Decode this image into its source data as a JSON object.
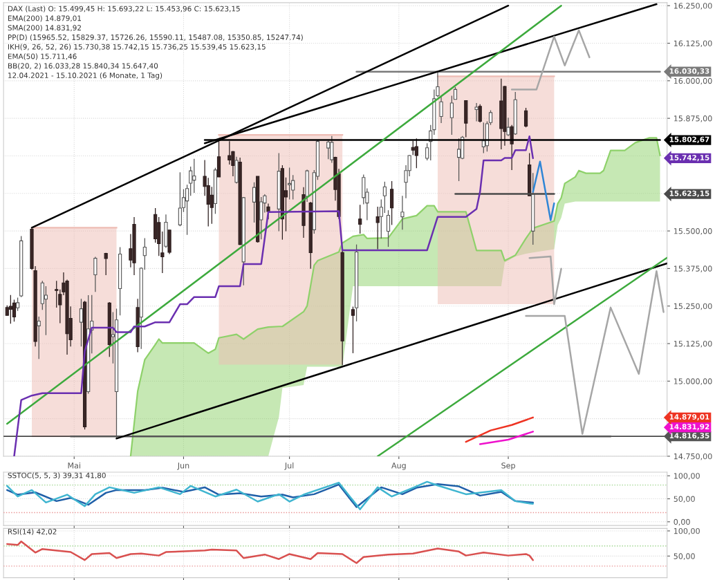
{
  "chart_data": [
    {
      "type": "candlestick",
      "xlim": [
        "2021-04-11",
        "2021-10-16"
      ],
      "ylim": [
        14750,
        16260
      ],
      "xticks": [
        {
          "value": "2021-05-01",
          "label": "Mai"
        },
        {
          "value": "2021-06-01",
          "label": "Jun"
        },
        {
          "value": "2021-07-01",
          "label": "Jul"
        },
        {
          "value": "2021-08-01",
          "label": "Aug"
        },
        {
          "value": "2021-09-01",
          "label": "Sep"
        }
      ],
      "yticks": [
        {
          "value": 14750,
          "label": "14.750,00"
        },
        {
          "value": 14875,
          "label": null
        },
        {
          "value": 15000,
          "label": "15.000,00"
        },
        {
          "value": 15125,
          "label": "15.125,00"
        },
        {
          "value": 15250,
          "label": "15.250,00"
        },
        {
          "value": 15375,
          "label": "15.375,00"
        },
        {
          "value": 15500,
          "label": "15.500,00"
        },
        {
          "value": 15625,
          "label": null
        },
        {
          "value": 15750,
          "label": null
        },
        {
          "value": 15875,
          "label": "15.875,00"
        },
        {
          "value": 16000,
          "label": "16.000,00"
        },
        {
          "value": 16125,
          "label": "16.125,00"
        },
        {
          "value": 16250,
          "label": "16.250,00"
        }
      ],
      "grid": true,
      "x": [
        "2021-04-12",
        "2021-04-13",
        "2021-04-14",
        "2021-04-15",
        "2021-04-16",
        "2021-04-19",
        "2021-04-20",
        "2021-04-21",
        "2021-04-22",
        "2021-04-23",
        "2021-04-26",
        "2021-04-27",
        "2021-04-28",
        "2021-04-29",
        "2021-04-30",
        "2021-05-03",
        "2021-05-04",
        "2021-05-05",
        "2021-05-06",
        "2021-05-07",
        "2021-05-10",
        "2021-05-11",
        "2021-05-12",
        "2021-05-13",
        "2021-05-14",
        "2021-05-17",
        "2021-05-18",
        "2021-05-19",
        "2021-05-20",
        "2021-05-21",
        "2021-05-24",
        "2021-05-25",
        "2021-05-26",
        "2021-05-27",
        "2021-05-28",
        "2021-05-31",
        "2021-06-01",
        "2021-06-02",
        "2021-06-03",
        "2021-06-04",
        "2021-06-07",
        "2021-06-08",
        "2021-06-09",
        "2021-06-10",
        "2021-06-11",
        "2021-06-14",
        "2021-06-15",
        "2021-06-16",
        "2021-06-17",
        "2021-06-18",
        "2021-06-21",
        "2021-06-22",
        "2021-06-23",
        "2021-06-24",
        "2021-06-25",
        "2021-06-28",
        "2021-06-29",
        "2021-06-30",
        "2021-07-01",
        "2021-07-02",
        "2021-07-05",
        "2021-07-06",
        "2021-07-07",
        "2021-07-08",
        "2021-07-09",
        "2021-07-12",
        "2021-07-13",
        "2021-07-14",
        "2021-07-15",
        "2021-07-16",
        "2021-07-19",
        "2021-07-20",
        "2021-07-21",
        "2021-07-22",
        "2021-07-23",
        "2021-07-26",
        "2021-07-27",
        "2021-07-28",
        "2021-07-29",
        "2021-07-30",
        "2021-08-02",
        "2021-08-03",
        "2021-08-04",
        "2021-08-05",
        "2021-08-06",
        "2021-08-09",
        "2021-08-10",
        "2021-08-11",
        "2021-08-12",
        "2021-08-13",
        "2021-08-16",
        "2021-08-17",
        "2021-08-18",
        "2021-08-19",
        "2021-08-20",
        "2021-08-23",
        "2021-08-24",
        "2021-08-25",
        "2021-08-26",
        "2021-08-27",
        "2021-08-30",
        "2021-08-31",
        "2021-09-01",
        "2021-09-02",
        "2021-09-03",
        "2021-09-06",
        "2021-09-07",
        "2021-09-08"
      ],
      "ohlc": [
        [
          15245,
          15252,
          15219,
          15219
        ],
        [
          15249,
          15287,
          15191,
          15239
        ],
        [
          15260,
          15271,
          15198,
          15214
        ],
        [
          15244,
          15278,
          15234,
          15261
        ],
        [
          15284,
          15483,
          15280,
          15467
        ],
        [
          15506,
          15509,
          15371,
          15375
        ],
        [
          15368,
          15383,
          15115,
          15132
        ],
        [
          15184,
          15215,
          15074,
          15200
        ],
        [
          15258,
          15334,
          15237,
          15327
        ],
        [
          15273,
          15316,
          15153,
          15286
        ],
        [
          15305,
          15334,
          15245,
          15302
        ],
        [
          15289,
          15305,
          15193,
          15254
        ],
        [
          15327,
          15362,
          15286,
          15297
        ],
        [
          15333,
          15338,
          15088,
          15158
        ],
        [
          15209,
          15249,
          15115,
          15138
        ],
        [
          15196,
          15274,
          15115,
          15241
        ],
        [
          15263,
          15267,
          14839,
          14848
        ],
        [
          14965,
          15286,
          14958,
          15174
        ],
        [
          15170,
          15287,
          15092,
          15200
        ],
        [
          15354,
          15414,
          15297,
          15409
        ],
        [
          15425,
          15427,
          15353,
          15408
        ],
        [
          15260,
          15263,
          15081,
          15122
        ],
        [
          15148,
          15230,
          15059,
          15155
        ],
        [
          14965,
          15241,
          14809,
          15204
        ],
        [
          15308,
          15446,
          15219,
          15423
        ],
        [
          15441,
          15490,
          15379,
          15403
        ],
        [
          15522,
          15546,
          15353,
          15394
        ],
        [
          15245,
          15274,
          15096,
          15115
        ],
        [
          15213,
          15379,
          15107,
          15376
        ],
        [
          15418,
          15476,
          15371,
          15446
        ],
        [
          15555,
          15576,
          15461,
          15474
        ],
        [
          15528,
          15546,
          15417,
          15458
        ],
        [
          15427,
          15498,
          15360,
          15414
        ],
        [
          15449,
          15555,
          15444,
          15529
        ],
        [
          15503,
          15503,
          15423,
          15429
        ],
        [
          15520,
          15695,
          15516,
          15576
        ],
        [
          15578,
          15639,
          15563,
          15611
        ],
        [
          15600,
          15654,
          15487,
          15641
        ],
        [
          15659,
          15714,
          15617,
          15700
        ],
        [
          15669,
          15740,
          15627,
          15683
        ],
        [
          15682,
          15736,
          15617,
          15648
        ],
        [
          15651,
          15677,
          15515,
          15589
        ],
        [
          15619,
          15647,
          15524,
          15578
        ],
        [
          15591,
          15710,
          15557,
          15703
        ],
        [
          15747,
          15799,
          15680,
          15680
        ],
        [
          15751,
          15799,
          15721,
          15736
        ],
        [
          15764,
          15766,
          15682,
          15718
        ],
        [
          15662,
          15747,
          15658,
          15735
        ],
        [
          15729,
          15744,
          15453,
          15455
        ],
        [
          15397,
          15613,
          15319,
          15611
        ],
        [
          15596,
          15662,
          15528,
          15645
        ],
        [
          15682,
          15682,
          15461,
          15464
        ],
        [
          15537,
          15613,
          15472,
          15597
        ],
        [
          15593,
          15622,
          15561,
          15617
        ],
        [
          15580,
          15591,
          15539,
          15565
        ],
        [
          15573,
          15759,
          15499,
          15699
        ],
        [
          15708,
          15719,
          15471,
          15540
        ],
        [
          15634,
          15678,
          15499,
          15613
        ],
        [
          15654,
          15711,
          15605,
          15658
        ],
        [
          15636,
          15686,
          15605,
          15668
        ],
        [
          15621,
          15646,
          15477,
          15518
        ],
        [
          15615,
          15704,
          15597,
          15700
        ],
        [
          15593,
          15597,
          15374,
          15428
        ],
        [
          15504,
          15703,
          15491,
          15694
        ],
        [
          15682,
          15804,
          15670,
          15798
        ],
        [
          15776,
          15800,
          15739,
          15796
        ],
        [
          15737,
          15816,
          15727,
          15795
        ],
        [
          15745,
          15747,
          15601,
          15638
        ],
        [
          15690,
          15707,
          15540,
          15548
        ],
        [
          15428,
          15435,
          15053,
          15134
        ],
        [
          15238,
          15248,
          15093,
          15219
        ],
        [
          15244,
          15455,
          15199,
          15430
        ],
        [
          15540,
          15587,
          15491,
          15522
        ],
        [
          15611,
          15688,
          15589,
          15678
        ],
        [
          15593,
          15642,
          15536,
          15629
        ],
        [
          15547,
          15581,
          15439,
          15528
        ],
        [
          15548,
          15605,
          15475,
          15579
        ],
        [
          15617,
          15664,
          15560,
          15647
        ],
        [
          15499,
          15569,
          15447,
          15552
        ],
        [
          15639,
          15666,
          15520,
          15577
        ],
        [
          15547,
          15617,
          15504,
          15563
        ],
        [
          15662,
          15719,
          15609,
          15701
        ],
        [
          15701,
          15753,
          15682,
          15751
        ],
        [
          15778,
          15800,
          15753,
          15769
        ],
        [
          15781,
          15808,
          15709,
          15751
        ],
        [
          15742,
          15792,
          15735,
          15777
        ],
        [
          15798,
          15853,
          15735,
          15833
        ],
        [
          15837,
          15971,
          15820,
          15940
        ],
        [
          15950,
          16030,
          15946,
          15980
        ],
        [
          15881,
          15950,
          15859,
          15930
        ],
        [
          15877,
          15950,
          15820,
          15926
        ],
        [
          15938,
          15979,
          15938,
          15971
        ],
        [
          15745,
          15808,
          15666,
          15772
        ],
        [
          15742,
          15816,
          15739,
          15812
        ],
        [
          15934,
          15934,
          15812,
          15859
        ],
        [
          15904,
          15926,
          15865,
          15912
        ],
        [
          15915,
          15922,
          15861,
          15865
        ],
        [
          15780,
          15861,
          15759,
          15800
        ],
        [
          15784,
          15865,
          15764,
          15857
        ],
        [
          15861,
          15902,
          15853,
          15894
        ],
        [
          15933,
          16007,
          15772,
          15841
        ],
        [
          15981,
          15983,
          15784,
          15831
        ],
        [
          15820,
          15877,
          15816,
          15845
        ],
        [
          15847,
          15853,
          15703,
          15790
        ],
        [
          15823,
          15963,
          15820,
          15937
        ],
        [
          15900,
          15910,
          15845,
          15849
        ],
        [
          15720,
          15759,
          15617,
          15617
        ],
        [
          15499.45,
          15693.22,
          15453.96,
          15623.15
        ]
      ],
      "series": [
        {
          "type": "line",
          "color": "#8ed16a",
          "x": [
            "2021-05-17",
            "2021-05-19",
            "2021-05-21",
            "2021-05-24",
            "2021-05-25",
            "2021-05-26",
            "2021-06-04",
            "2021-06-08",
            "2021-06-10",
            "2021-06-11",
            "2021-06-16",
            "2021-06-18",
            "2021-06-22",
            "2021-06-25",
            "2021-06-28",
            "2021-06-29",
            "2021-07-05",
            "2021-07-06",
            "2021-07-08",
            "2021-07-09",
            "2021-07-15",
            "2021-07-16",
            "2021-07-19",
            "2021-07-22",
            "2021-07-23",
            "2021-07-29",
            "2021-08-02",
            "2021-08-06",
            "2021-08-09",
            "2021-08-11",
            "2021-08-12",
            "2021-08-20",
            "2021-08-23",
            "2021-08-30",
            "2021-08-31",
            "2021-09-03",
            "2021-09-06",
            "2021-09-08",
            "2021-09-14",
            "2021-09-15",
            "2021-09-16",
            "2021-09-17",
            "2021-09-20",
            "2021-09-21",
            "2021-09-23",
            "2021-09-27",
            "2021-09-28",
            "2021-09-30",
            "2021-10-04",
            "2021-10-07",
            "2021-10-11",
            "2021-10-13",
            "2021-10-14"
          ],
          "values": [
            14750,
            14966,
            15071,
            15122,
            15140,
            15127,
            15127,
            15093,
            15106,
            15144,
            15156,
            15140,
            15173,
            15180,
            15182,
            15182,
            15231,
            15250,
            15386,
            15401,
            15430,
            15460,
            15482,
            15488,
            15475,
            15477,
            15540,
            15551,
            15584,
            15584,
            15564,
            15564,
            15435,
            15435,
            15401,
            15419,
            15475,
            15509,
            15533,
            15591,
            15610,
            15658,
            15680,
            15701,
            15692,
            15692,
            15701,
            15768,
            15768,
            15794,
            15810,
            15810,
            15752
          ],
          "upper": [
            14750,
            14966,
            15071,
            15122,
            15140,
            15127,
            15127,
            15093,
            15106,
            15144,
            15156,
            15140,
            15173,
            15180,
            15182,
            15182,
            15231,
            15250,
            15386,
            15401,
            15430,
            15460,
            15482,
            15488,
            15475,
            15477,
            15540,
            15551,
            15584,
            15584,
            15564,
            15564,
            15435,
            15435,
            15401,
            15419,
            15475,
            15509,
            15533,
            15591,
            15610,
            15658,
            15680,
            15701,
            15692,
            15692,
            15701,
            15768,
            15768,
            15794,
            15810,
            15810,
            15752
          ],
          "lower": [
            14750,
            14750,
            14750,
            14750,
            14750,
            14750,
            14750,
            14750,
            14750,
            14750,
            14750,
            14750,
            14750,
            14750,
            14880,
            14977,
            14987,
            15048,
            15048,
            15048,
            15048,
            15048,
            15316,
            15316,
            15316,
            15316,
            15316,
            15316,
            15316,
            15316,
            15316,
            15316,
            15316,
            15316,
            15395,
            15415,
            15424,
            15428,
            15439,
            15520,
            15544,
            15591,
            15598,
            15598,
            15598,
            15598,
            15598,
            15598,
            15598,
            15598,
            15598,
            15598,
            15598
          ]
        },
        {
          "type": "line",
          "color": "#eebcb4",
          "x": [
            "2021-04-19",
            "2021-05-13"
          ],
          "values": [
            15511,
            15511
          ],
          "upper": [
            15511,
            15511
          ],
          "lower": [
            14814,
            14814
          ]
        },
        {
          "type": "line",
          "color": "#eebcb4",
          "x": [
            "2021-06-11",
            "2021-07-16"
          ],
          "values": [
            15820,
            15820
          ],
          "upper": [
            15820,
            15820
          ],
          "lower": [
            15055,
            15055
          ]
        },
        {
          "type": "line",
          "color": "#eebcb4",
          "x": [
            "2021-08-12",
            "2021-09-14"
          ],
          "values": [
            16015,
            16015
          ],
          "upper": [
            16015,
            16015
          ],
          "lower": [
            15256,
            15256
          ]
        },
        {
          "type": "line",
          "name": "16.030,33",
          "color": "#7a7a7a",
          "x": [
            "2021-07-20",
            "2021-10-14"
          ],
          "values": [
            16030.33,
            16030.33
          ]
        },
        {
          "type": "line",
          "name": "15.802,67",
          "color": "#000000",
          "x": [
            "2021-06-07",
            "2021-10-14"
          ],
          "values": [
            15802.67,
            15802.67
          ]
        },
        {
          "type": "line",
          "name": "15.623,15",
          "color": "#4a4a4a",
          "x": [
            "2021-08-17",
            "2021-09-14"
          ],
          "values": [
            15623.15,
            15623.15
          ]
        },
        {
          "type": "line",
          "name": "14.816,35",
          "color": "#555555",
          "x": [
            "2021-04-30",
            "2021-09-30"
          ],
          "values": [
            14816.35,
            14816.35
          ]
        },
        {
          "type": "line",
          "color": "#000000",
          "x": [
            "2021-04-19",
            "2021-09-01"
          ],
          "values": [
            15511,
            16250
          ]
        },
        {
          "type": "line",
          "color": "#000000",
          "x": [
            "2021-06-07",
            "2021-10-13"
          ],
          "values": [
            15792,
            16255
          ]
        },
        {
          "type": "line",
          "color": "#000000",
          "x": [
            "2021-05-13",
            "2021-10-16"
          ],
          "values": [
            14809,
            15392
          ]
        },
        {
          "type": "line",
          "color": "#3daa3d",
          "x": [
            "2021-04-12",
            "2021-09-16"
          ],
          "values": [
            14858,
            16250
          ]
        },
        {
          "type": "line",
          "color": "#3daa3d",
          "x": [
            "2021-07-26",
            "2021-10-16"
          ],
          "values": [
            14750,
            15411
          ]
        },
        {
          "type": "line",
          "name": "15.742,15",
          "color": "#6a2fb0",
          "x": [
            "2021-04-14",
            "2021-04-16",
            "2021-04-19",
            "2021-04-22",
            "2021-05-03",
            "2021-05-04",
            "2021-05-06",
            "2021-05-12",
            "2021-05-13",
            "2021-05-17",
            "2021-05-18",
            "2021-05-21",
            "2021-05-24",
            "2021-05-28",
            "2021-05-31",
            "2021-06-02",
            "2021-06-04",
            "2021-06-10",
            "2021-06-11",
            "2021-06-17",
            "2021-06-18",
            "2021-06-23",
            "2021-06-25",
            "2021-07-15",
            "2021-07-16",
            "2021-08-09",
            "2021-08-12",
            "2021-08-20",
            "2021-08-23",
            "2021-08-24",
            "2021-08-25",
            "2021-08-30",
            "2021-08-31",
            "2021-09-02",
            "2021-09-03",
            "2021-09-06",
            "2021-09-07",
            "2021-09-08"
          ],
          "values": [
            14750,
            14937,
            14952,
            14960,
            14960,
            15100,
            15178,
            15178,
            15163,
            15163,
            15182,
            15182,
            15196,
            15196,
            15256,
            15256,
            15280,
            15280,
            15316,
            15316,
            15390,
            15390,
            15563,
            15566,
            15436,
            15436,
            15547,
            15547,
            15573,
            15630,
            15735,
            15735,
            15743,
            15743,
            15769,
            15769,
            15815,
            15742.15
          ]
        },
        {
          "type": "line",
          "name": "14.879,01",
          "color": "#ee3322",
          "x": [
            "2021-08-20",
            "2021-08-27",
            "2021-09-02",
            "2021-09-08"
          ],
          "values": [
            14798,
            14836,
            14854,
            14879.01
          ]
        },
        {
          "type": "line",
          "name": "14.831,92",
          "color": "#ee11cc",
          "x": [
            "2021-08-24",
            "2021-09-01",
            "2021-09-08"
          ],
          "values": [
            14790,
            14805,
            14831.92
          ]
        },
        {
          "type": "line",
          "color": "#a6a6a6",
          "x": [
            "2021-09-02",
            "2021-09-09",
            "2021-09-14",
            "2021-09-17",
            "2021-09-21",
            "2021-09-24"
          ],
          "values": [
            15971,
            15971,
            16147,
            16051,
            16168,
            16078
          ]
        },
        {
          "type": "line",
          "color": "#a6a6a6",
          "x": [
            "2021-09-07",
            "2021-09-13",
            "2021-09-14",
            "2021-09-16"
          ],
          "values": [
            15410,
            15415,
            15256,
            15374
          ]
        },
        {
          "type": "line",
          "color": "#a6a6a6",
          "x": [
            "2021-09-06",
            "2021-09-17",
            "2021-09-22",
            "2021-09-30",
            "2021-10-08",
            "2021-10-13",
            "2021-10-15"
          ],
          "values": [
            15217,
            15217,
            14824,
            15245,
            15024,
            15366,
            15230
          ]
        },
        {
          "type": "line",
          "color": "#2f86d6",
          "x": [
            "2021-09-08",
            "2021-09-10",
            "2021-09-13",
            "2021-09-14"
          ],
          "values": [
            15630,
            15731,
            15536,
            15592
          ]
        }
      ],
      "ref_lines": [
        {
          "axis": "y",
          "value": 14816.35,
          "color": "#000000"
        }
      ],
      "annotations": [
        "DAX (Last) O: 15.499,45 H: 15.693,22 L: 15.453,96 C: 15.623,15",
        "EMA(200) 14.879,01",
        "SMA(200) 14.831,92",
        "PP(D) (15965.52, 15829.37, 15726.26, 15590.11, 15487.08, 15350.85, 15247.74)",
        "IKH(9, 26, 52, 26) 15.730,38 15.742,15 15.736,25 15.539,45 15.623,15",
        "EMA(50) 15.711,46",
        "BB(20, 2) 16.033,28 15.840,34 15.647,40",
        "12.04.2021 - 15.10.2021 (6 Monate, 1 Tag)"
      ]
    },
    {
      "type": "line",
      "xlim": [
        "2021-04-11",
        "2021-10-16"
      ],
      "ylim": [
        -8,
        108
      ],
      "xticks": [
        {
          "value": "2021-05-01",
          "label": null
        },
        {
          "value": "2021-06-01",
          "label": null
        },
        {
          "value": "2021-07-01",
          "label": null
        },
        {
          "value": "2021-08-01",
          "label": null
        },
        {
          "value": "2021-09-01",
          "label": null
        }
      ],
      "yticks": [
        {
          "value": 0,
          "label": "0,00"
        },
        {
          "value": 50,
          "label": "50,00"
        },
        {
          "value": 100,
          "label": "100,00"
        }
      ],
      "grid": true,
      "tick_labels": "y",
      "series": [
        {
          "color": "#1f5fa8",
          "x": [
            "2021-04-12",
            "2021-04-15",
            "2021-04-20",
            "2021-04-26",
            "2021-04-30",
            "2021-05-05",
            "2021-05-10",
            "2021-05-13",
            "2021-05-21",
            "2021-05-26",
            "2021-06-01",
            "2021-06-07",
            "2021-06-11",
            "2021-06-17",
            "2021-06-23",
            "2021-06-29",
            "2021-07-02",
            "2021-07-08",
            "2021-07-15",
            "2021-07-20",
            "2021-07-27",
            "2021-08-02",
            "2021-08-06",
            "2021-08-12",
            "2021-08-18",
            "2021-08-24",
            "2021-08-30",
            "2021-09-03",
            "2021-09-08"
          ],
          "values": [
            69,
            59,
            64,
            45,
            52,
            37,
            63,
            69,
            69,
            74,
            65,
            75,
            59,
            62,
            55,
            59,
            53,
            60,
            81,
            32,
            75,
            60,
            74,
            82,
            77,
            57,
            65,
            45,
            41.8
          ]
        },
        {
          "color": "#3fb5d0",
          "x": [
            "2021-04-12",
            "2021-04-15",
            "2021-04-19",
            "2021-04-23",
            "2021-04-29",
            "2021-05-04",
            "2021-05-07",
            "2021-05-11",
            "2021-05-18",
            "2021-05-25",
            "2021-05-31",
            "2021-06-03",
            "2021-06-10",
            "2021-06-16",
            "2021-06-22",
            "2021-06-28",
            "2021-07-01",
            "2021-07-05",
            "2021-07-13",
            "2021-07-15",
            "2021-07-21",
            "2021-07-26",
            "2021-07-30",
            "2021-08-05",
            "2021-08-09",
            "2021-08-12",
            "2021-08-20",
            "2021-08-30",
            "2021-09-03",
            "2021-09-07",
            "2021-09-08"
          ],
          "values": [
            78,
            55,
            69,
            42,
            59,
            34,
            60,
            75,
            63,
            75,
            60,
            78,
            55,
            70,
            44,
            60,
            44,
            59,
            80,
            85,
            27,
            75,
            55,
            74,
            87,
            79,
            60,
            69,
            45,
            40,
            39.31
          ]
        }
      ],
      "ref_lines": [
        {
          "axis": "y",
          "value": 80,
          "color": "#9bd48a",
          "line_style": "dotted"
        },
        {
          "axis": "y",
          "value": 20,
          "color": "#e89090",
          "line_style": "dotted"
        }
      ],
      "annotations": [
        "SSTOC(5, 5, 3) 39,31 41,80"
      ]
    },
    {
      "type": "line",
      "xlim": [
        "2021-04-11",
        "2021-10-16"
      ],
      "ylim": [
        7,
        105
      ],
      "xticks": [
        {
          "value": "2021-05-01",
          "label": null
        },
        {
          "value": "2021-06-01",
          "label": null
        },
        {
          "value": "2021-07-01",
          "label": null
        },
        {
          "value": "2021-08-01",
          "label": null
        },
        {
          "value": "2021-09-01",
          "label": null
        }
      ],
      "yticks": [
        {
          "value": 50,
          "label": "50,00"
        },
        {
          "value": 100,
          "label": "100,00"
        }
      ],
      "grid": true,
      "tick_labels": "y",
      "series": [
        {
          "color": "#d9504f",
          "x": [
            "2021-04-12",
            "2021-04-15",
            "2021-04-16",
            "2021-04-20",
            "2021-04-22",
            "2021-04-30",
            "2021-05-04",
            "2021-05-06",
            "2021-05-11",
            "2021-05-13",
            "2021-05-17",
            "2021-05-20",
            "2021-05-25",
            "2021-05-27",
            "2021-06-07",
            "2021-06-09",
            "2021-06-16",
            "2021-06-18",
            "2021-06-24",
            "2021-06-28",
            "2021-07-01",
            "2021-07-07",
            "2021-07-09",
            "2021-07-16",
            "2021-07-20",
            "2021-07-22",
            "2021-07-29",
            "2021-08-05",
            "2021-08-12",
            "2021-08-18",
            "2021-08-20",
            "2021-08-25",
            "2021-09-01",
            "2021-09-06",
            "2021-09-07",
            "2021-09-08"
          ],
          "values": [
            74,
            72,
            79,
            57,
            64,
            58,
            42,
            54,
            56,
            46,
            54,
            55,
            51,
            58,
            61,
            63,
            61,
            46,
            53,
            44,
            54,
            44,
            56,
            54,
            36,
            48,
            53,
            55,
            65,
            59,
            51,
            57,
            51,
            54,
            51,
            42.02
          ]
        }
      ],
      "ref_lines": [
        {
          "axis": "y",
          "value": 70,
          "color": "#9bd48a",
          "line_style": "dotted"
        },
        {
          "axis": "y",
          "value": 30,
          "color": "#e89090",
          "line_style": "dotted"
        }
      ],
      "annotations": [
        "RSI(14) 42,02"
      ]
    }
  ]
}
